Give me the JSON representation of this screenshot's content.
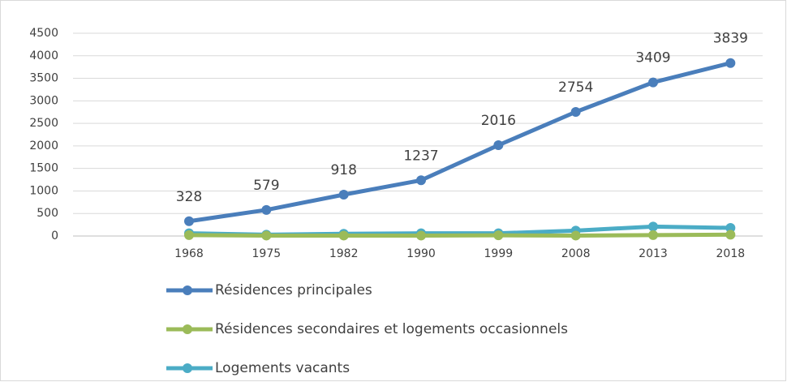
{
  "chart_data": {
    "type": "line",
    "categories": [
      null,
      "1968",
      "1975",
      "1982",
      "1990",
      "1999",
      "2008",
      "2013",
      "2018"
    ],
    "series": [
      {
        "name": "Résidences principales",
        "color": "#4a7ebb",
        "values": [
          null,
          328,
          579,
          918,
          1237,
          2016,
          2754,
          3409,
          3839
        ],
        "show_labels": true
      },
      {
        "name": "Résidences secondaires et logements occasionnels",
        "color": "#9bbb59",
        "values": [
          null,
          20,
          10,
          10,
          10,
          15,
          10,
          20,
          30
        ]
      },
      {
        "name": "Logements vacants",
        "color": "#4bacc6",
        "values": [
          null,
          60,
          30,
          50,
          60,
          60,
          120,
          210,
          180
        ]
      }
    ],
    "ylim": [
      0,
      4500
    ],
    "yticks": [
      0,
      500,
      1000,
      1500,
      2000,
      2500,
      3000,
      3500,
      4000,
      4500
    ],
    "grid": true,
    "legend": "bottom"
  }
}
